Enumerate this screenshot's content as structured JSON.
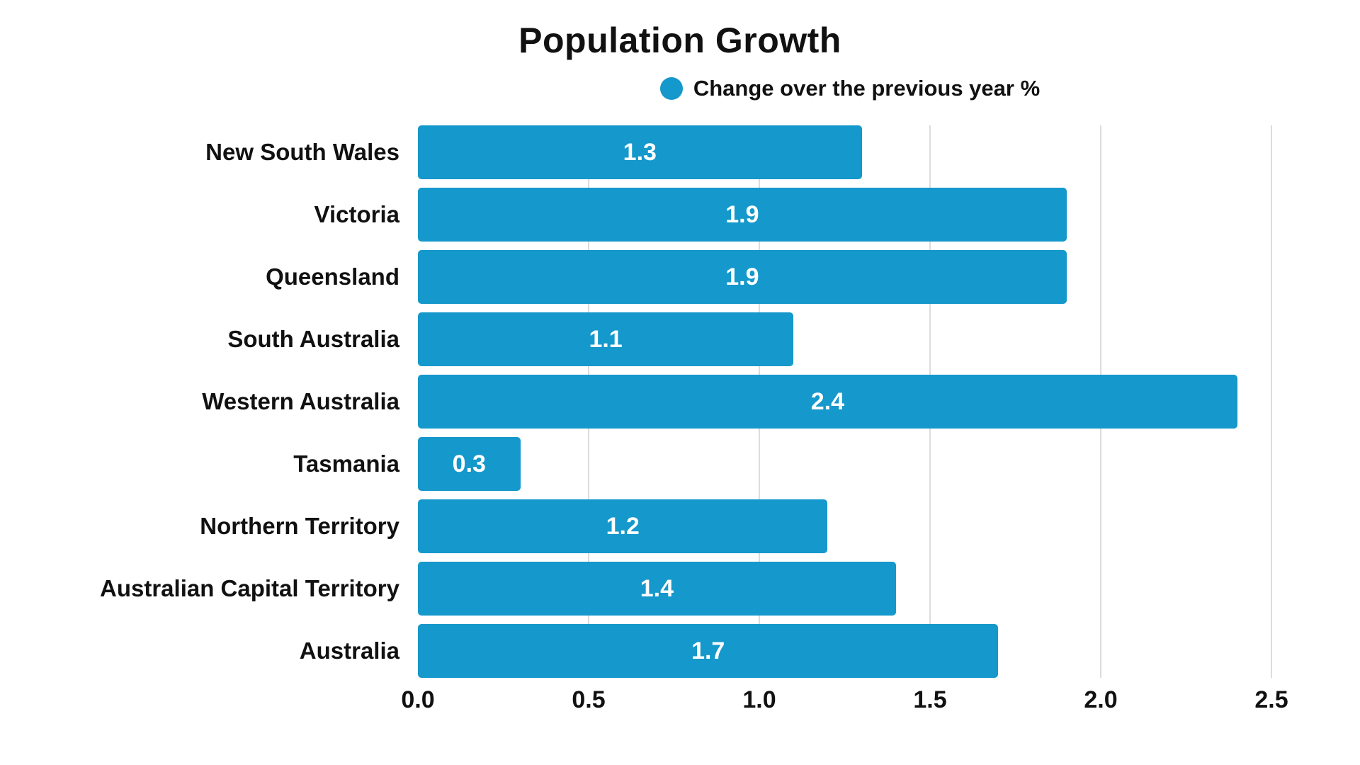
{
  "chart_data": {
    "type": "bar",
    "orientation": "horizontal",
    "title": "Population Growth",
    "legend": {
      "label": "Change over the previous year %"
    },
    "categories": [
      "New South Wales",
      "Victoria",
      "Queensland",
      "South Australia",
      "Western Australia",
      "Tasmania",
      "Northern Territory",
      "Australian Capital Territory",
      "Australia"
    ],
    "values": [
      1.3,
      1.9,
      1.9,
      1.1,
      2.4,
      0.3,
      1.2,
      1.4,
      1.7
    ],
    "xlabel": "",
    "ylabel": "",
    "xlim": [
      0,
      2.5
    ],
    "xticks": [
      "0.0",
      "0.5",
      "1.0",
      "1.5",
      "2.0",
      "2.5"
    ],
    "grid": true,
    "legend_position": "top",
    "colors": {
      "bar": "#1598cb",
      "grid": "#dcdcdc",
      "text": "#111111",
      "value_label": "#ffffff"
    }
  }
}
